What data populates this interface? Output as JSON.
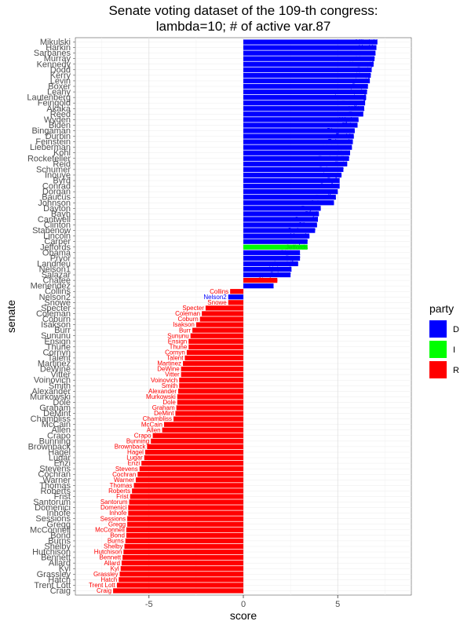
{
  "chart_data": {
    "type": "bar",
    "orientation": "horizontal",
    "title": "Senate voting dataset of the 109-th congress:",
    "subtitle": "lambda=10; # of active var.87",
    "xlabel": "score",
    "ylabel": "senate",
    "xlim": [
      -8.9,
      8.9
    ],
    "xticks": [
      -5,
      0,
      5
    ],
    "xtick_labels": [
      "-5",
      "0",
      "5"
    ],
    "grid": true,
    "legend": {
      "title": "party",
      "position": "right",
      "items": [
        {
          "label": "D",
          "color": "#0000ff"
        },
        {
          "label": "I",
          "color": "#00ff00"
        },
        {
          "label": "R",
          "color": "#ff0000"
        }
      ]
    },
    "colors": {
      "D": "#0000ff",
      "I": "#00ff00",
      "R": "#ff0000"
    },
    "categories": [
      "Mikulski",
      "Harkin",
      "Sarbanes",
      "Murray",
      "Kennedy",
      "Dodd",
      "Kerry",
      "Levin",
      "Boxer",
      "Leahy",
      "Lautenberg",
      "Feingold",
      "Akaka",
      "Reed",
      "Wyden",
      "Biden",
      "Bingaman",
      "Durbin",
      "Feinstein",
      "Lieberman",
      "Kohl",
      "Rockefeller",
      "Reid",
      "Schumer",
      "Inouye",
      "Byrd",
      "Conrad",
      "Dorgan",
      "Baucus",
      "Johnson",
      "Dayton",
      "Bayh",
      "Cantwell",
      "Clinton",
      "Stabenow",
      "Lincoln",
      "Carper",
      "Jeffords",
      "Obama",
      "Pryor",
      "Landrieu",
      "Nelson1",
      "Salazar",
      "Chafee",
      "Menendez",
      "Collins",
      "Nelson2",
      "Snowe",
      "Specter",
      "Coleman",
      "Coburn",
      "Isakson",
      "Burr",
      "Sununu",
      "Ensign",
      "Thune",
      "Cornyn",
      "Talent",
      "Martinez",
      "DeWine",
      "Vitter",
      "Voinovich",
      "Smith",
      "Alexander",
      "Murkowski",
      "Dole",
      "Graham",
      "DeMint",
      "Chambliss",
      "McCain",
      "Allen",
      "Crapo",
      "Bunning",
      "Brownback",
      "Hagel",
      "Lugar",
      "Enzi",
      "Stevens",
      "Cochran",
      "Warner",
      "Thomas",
      "Roberts",
      "Frist",
      "Santorum",
      "Domenici",
      "Inhofe",
      "Sessions",
      "Gregg",
      "McConnell",
      "Bond",
      "Burns",
      "Shelby",
      "Hutchison",
      "Bennett",
      "Allard",
      "Kyl",
      "Grassley",
      "Hatch",
      "Trent Lott",
      "Craig"
    ],
    "party": [
      "D",
      "D",
      "D",
      "D",
      "D",
      "D",
      "D",
      "D",
      "D",
      "D",
      "D",
      "D",
      "D",
      "D",
      "D",
      "D",
      "D",
      "D",
      "D",
      "D",
      "D",
      "D",
      "D",
      "D",
      "D",
      "D",
      "D",
      "D",
      "D",
      "D",
      "D",
      "D",
      "D",
      "D",
      "D",
      "D",
      "D",
      "I",
      "D",
      "D",
      "D",
      "D",
      "D",
      "R",
      "D",
      "R",
      "D",
      "R",
      "R",
      "R",
      "R",
      "R",
      "R",
      "R",
      "R",
      "R",
      "R",
      "R",
      "R",
      "R",
      "R",
      "R",
      "R",
      "R",
      "R",
      "R",
      "R",
      "R",
      "R",
      "R",
      "R",
      "R",
      "R",
      "R",
      "R",
      "R",
      "R",
      "R",
      "R",
      "R",
      "R",
      "R",
      "R",
      "R",
      "R",
      "R",
      "R",
      "R",
      "R",
      "R",
      "R",
      "R",
      "R",
      "R",
      "R",
      "R",
      "R",
      "R",
      "R",
      "R"
    ],
    "values": [
      7.1,
      7.05,
      7.0,
      6.95,
      6.9,
      6.8,
      6.75,
      6.7,
      6.6,
      6.55,
      6.5,
      6.45,
      6.4,
      6.35,
      6.1,
      6.05,
      5.9,
      5.85,
      5.8,
      5.75,
      5.65,
      5.6,
      5.5,
      5.3,
      5.2,
      5.1,
      5.1,
      5.0,
      4.9,
      4.8,
      4.1,
      4.0,
      3.95,
      3.9,
      3.8,
      3.5,
      3.4,
      3.4,
      3.0,
      3.0,
      2.9,
      2.55,
      2.5,
      1.8,
      1.6,
      -0.7,
      -0.8,
      -0.8,
      -2.0,
      -2.2,
      -2.3,
      -2.5,
      -2.7,
      -2.8,
      -2.9,
      -2.9,
      -3.0,
      -3.1,
      -3.2,
      -3.3,
      -3.3,
      -3.4,
      -3.4,
      -3.45,
      -3.5,
      -3.5,
      -3.55,
      -3.6,
      -3.7,
      -4.2,
      -4.3,
      -4.8,
      -4.9,
      -5.1,
      -5.2,
      -5.25,
      -5.4,
      -5.5,
      -5.6,
      -5.7,
      -5.8,
      -5.9,
      -6.0,
      -6.05,
      -6.1,
      -6.1,
      -6.15,
      -6.15,
      -6.2,
      -6.2,
      -6.25,
      -6.3,
      -6.35,
      -6.4,
      -6.45,
      -6.5,
      -6.55,
      -6.6,
      -6.7,
      -6.9
    ]
  }
}
